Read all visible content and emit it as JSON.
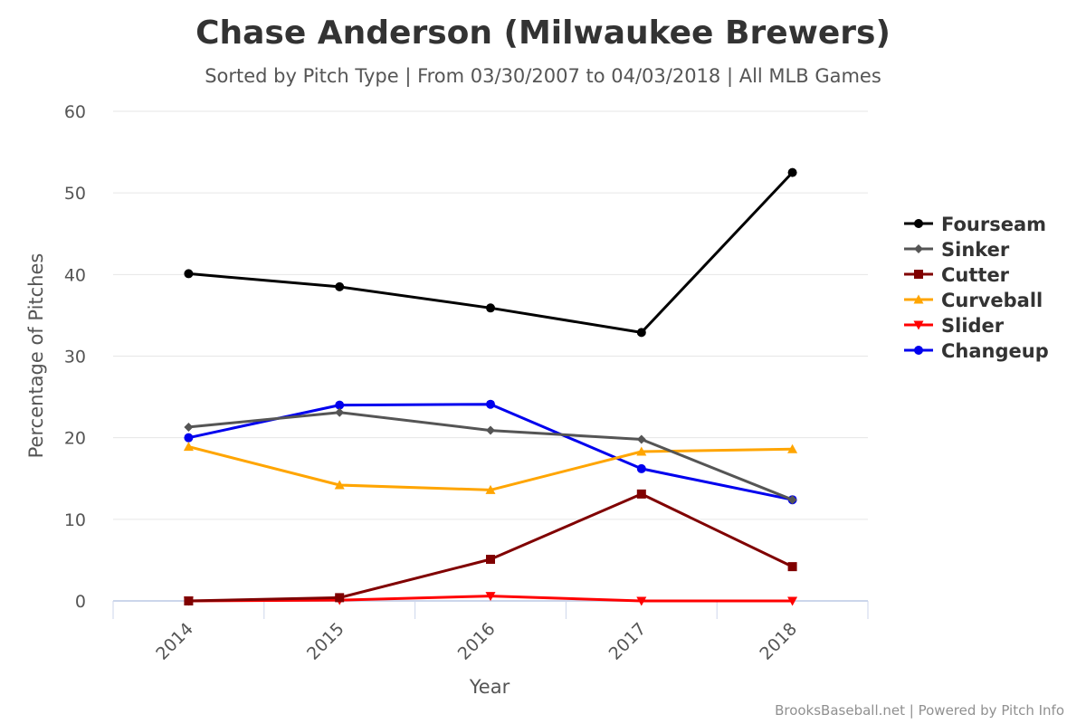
{
  "chart_data": {
    "type": "line",
    "title": "Chase Anderson (Milwaukee Brewers)",
    "subtitle": "Sorted by Pitch Type | From 03/30/2007 to 04/03/2018 | All MLB Games",
    "xlabel": "Year",
    "ylabel": "Percentage of Pitches",
    "categories": [
      "2014",
      "2015",
      "2016",
      "2017",
      "2018"
    ],
    "ylim": [
      0,
      60
    ],
    "yticks": [
      0,
      10,
      20,
      30,
      40,
      50,
      60
    ],
    "grid": true,
    "legend_position": "right",
    "series": [
      {
        "name": "Fourseam",
        "color": "#000000",
        "marker": "circle",
        "values": [
          40.1,
          38.5,
          35.9,
          32.9,
          52.5
        ]
      },
      {
        "name": "Sinker",
        "color": "#555555",
        "marker": "diamond",
        "values": [
          21.3,
          23.1,
          20.9,
          19.8,
          12.4
        ]
      },
      {
        "name": "Cutter",
        "color": "#800000",
        "marker": "square",
        "values": [
          0.0,
          0.4,
          5.1,
          13.1,
          4.2
        ]
      },
      {
        "name": "Curveball",
        "color": "#FFA500",
        "marker": "triangle",
        "values": [
          18.9,
          14.2,
          13.6,
          18.3,
          18.6
        ]
      },
      {
        "name": "Slider",
        "color": "#FF0000",
        "marker": "triangle-down",
        "values": [
          0.0,
          0.1,
          0.6,
          0.0,
          0.0
        ]
      },
      {
        "name": "Changeup",
        "color": "#0000EE",
        "marker": "circle",
        "values": [
          20.0,
          24.0,
          24.1,
          16.2,
          12.4
        ]
      }
    ],
    "credits": "BrooksBaseball.net | Powered by Pitch Info"
  }
}
